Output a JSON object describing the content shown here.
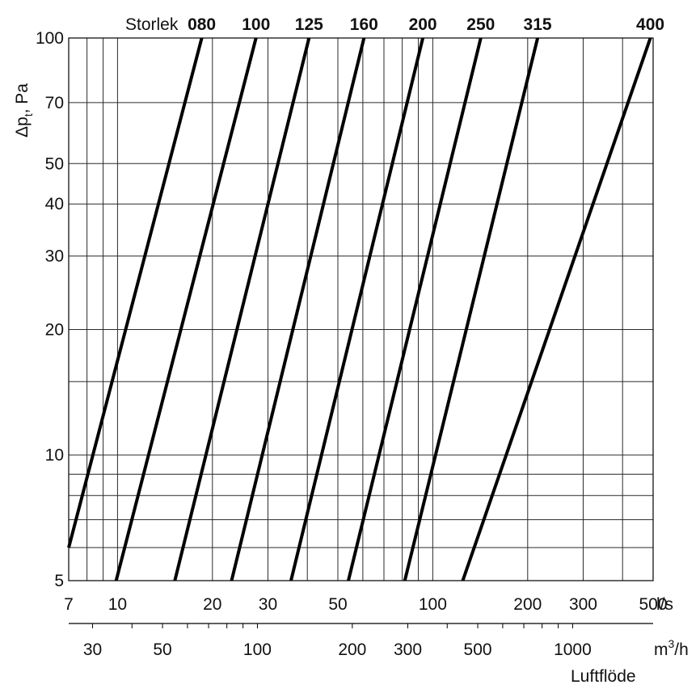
{
  "chart_data": {
    "type": "line",
    "title": "",
    "header_label": "Storlek",
    "xlabel": "Luftflöde",
    "ylabel": "Δpt, Pa",
    "ylabel_main": "Δp",
    "ylabel_sub": "t",
    "ylabel_unit": ", Pa",
    "x_scale": "log",
    "y_scale": "log",
    "xlim": [
      7,
      500
    ],
    "ylim": [
      5,
      100
    ],
    "x_unit": "l/s",
    "x2_unit_main": "m",
    "x2_unit_sup": "3",
    "x2_unit_tail": "/h",
    "x2_lim": [
      25.2,
      1800
    ],
    "grid": true,
    "legend": "none",
    "x_ticks": [
      "7",
      "10",
      "20",
      "30",
      "50",
      "100",
      "200",
      "300",
      "500"
    ],
    "x2_ticks": [
      "30",
      "50",
      "100",
      "200",
      "300",
      "500",
      "1000"
    ],
    "y_ticks": [
      "5",
      "10",
      "20",
      "30",
      "40",
      "50",
      "70",
      "100"
    ],
    "series": [
      {
        "name": "080",
        "x": [
          7.0,
          18.5
        ],
        "y": [
          6.0,
          100
        ]
      },
      {
        "name": "100",
        "x": [
          9.9,
          27.5
        ],
        "y": [
          5,
          100
        ]
      },
      {
        "name": "125",
        "x": [
          15.2,
          40.5
        ],
        "y": [
          5,
          100
        ]
      },
      {
        "name": "160",
        "x": [
          23.0,
          60.5
        ],
        "y": [
          5,
          100
        ]
      },
      {
        "name": "200",
        "x": [
          35.5,
          93
        ],
        "y": [
          5,
          100
        ]
      },
      {
        "name": "250",
        "x": [
          54.0,
          142
        ],
        "y": [
          5,
          100
        ]
      },
      {
        "name": "315",
        "x": [
          81.5,
          215
        ],
        "y": [
          5,
          100
        ]
      },
      {
        "name": "400",
        "x": [
          124.5,
          490
        ],
        "y": [
          5,
          100
        ]
      }
    ]
  }
}
